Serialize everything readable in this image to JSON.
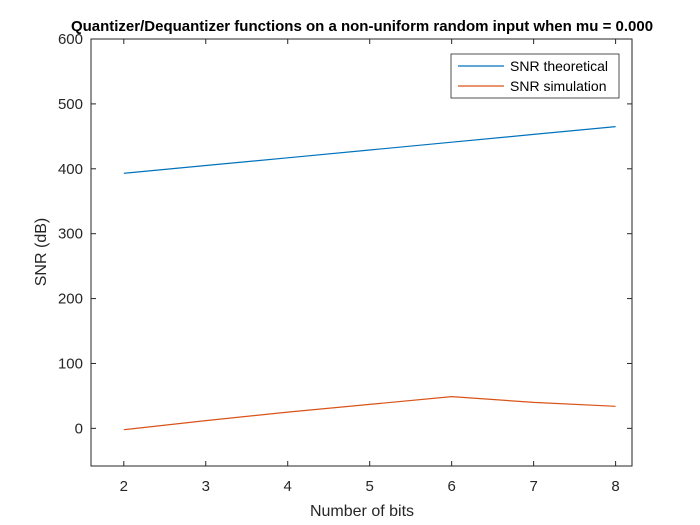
{
  "chart_data": {
    "type": "line",
    "title": "Quantizer/Dequantizer functions on a non-uniform random input when mu = 0.000",
    "xlabel": "Number of bits",
    "ylabel": "SNR (dB)",
    "xlim": [
      1.6,
      8.2
    ],
    "ylim": [
      -58,
      600
    ],
    "xticks": [
      "2",
      "3",
      "4",
      "5",
      "6",
      "7",
      "8"
    ],
    "yticks": [
      "0",
      "100",
      "200",
      "300",
      "400",
      "500",
      "600"
    ],
    "x": [
      2,
      3,
      4,
      5,
      6,
      7,
      8
    ],
    "series": [
      {
        "name": "SNR theoretical",
        "color": "#0072BD",
        "values": [
          393,
          405,
          417,
          429,
          441,
          453,
          465
        ]
      },
      {
        "name": "SNR simulation",
        "color": "#D95319",
        "values": [
          -2,
          12,
          25,
          37,
          49,
          40,
          34
        ]
      }
    ],
    "legend": "top-right",
    "grid": false
  }
}
